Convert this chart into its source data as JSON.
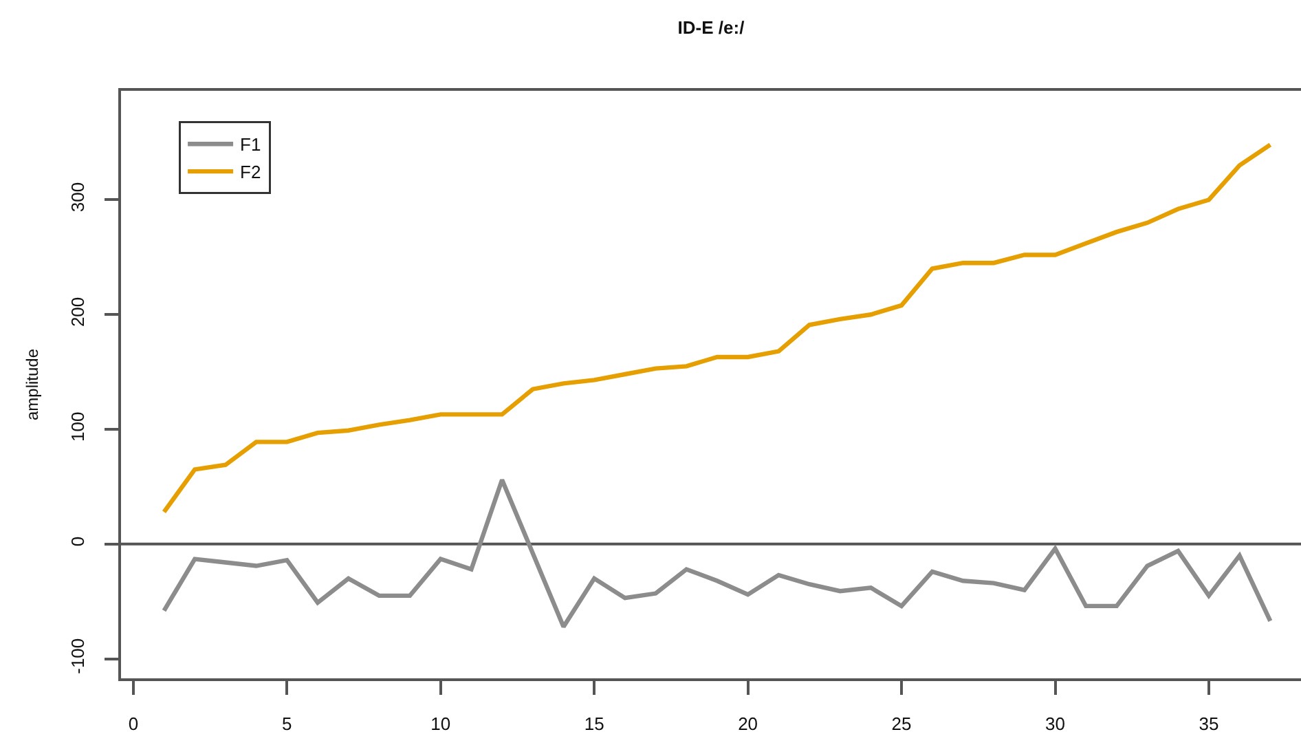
{
  "chart_data": {
    "type": "line",
    "title": "ID-E /e:/",
    "ylabel": "amplitude",
    "x": [
      1,
      2,
      3,
      4,
      5,
      6,
      7,
      8,
      9,
      10,
      11,
      12,
      13,
      14,
      15,
      16,
      17,
      18,
      19,
      20,
      21,
      22,
      23,
      24,
      25,
      26,
      27,
      28,
      29,
      30,
      31,
      32,
      33,
      34,
      35,
      36,
      37
    ],
    "series": [
      {
        "name": "F1",
        "color": "#8c8c8c",
        "values": [
          -58,
          -13,
          -16,
          -19,
          -14,
          -51,
          -30,
          -45,
          -45,
          -13,
          -22,
          56,
          -8,
          -72,
          -30,
          -47,
          -43,
          -22,
          -32,
          -44,
          -27,
          -35,
          -41,
          -38,
          -54,
          -24,
          -32,
          -34,
          -40,
          -4,
          -54,
          -54,
          -19,
          -6,
          -45,
          -10,
          -67
        ]
      },
      {
        "name": "F2",
        "color": "#e69f00",
        "values": [
          28,
          65,
          69,
          89,
          89,
          97,
          99,
          104,
          108,
          113,
          113,
          113,
          135,
          140,
          143,
          148,
          153,
          155,
          163,
          163,
          168,
          191,
          196,
          200,
          208,
          240,
          245,
          245,
          252,
          252,
          262,
          272,
          280,
          292,
          300,
          330,
          348
        ]
      }
    ],
    "xlim": [
      -0.4,
      38
    ],
    "xticks": [
      0,
      5,
      10,
      15,
      20,
      25,
      30,
      35
    ],
    "ylim": [
      -117,
      395
    ],
    "yticks": [
      -100,
      0,
      100,
      200,
      300
    ],
    "ref_lines": [
      {
        "axis": "y",
        "value": 0,
        "color": "#555555"
      }
    ],
    "grid": false,
    "legend": "top left",
    "marker": "none",
    "line_style": "solid"
  }
}
